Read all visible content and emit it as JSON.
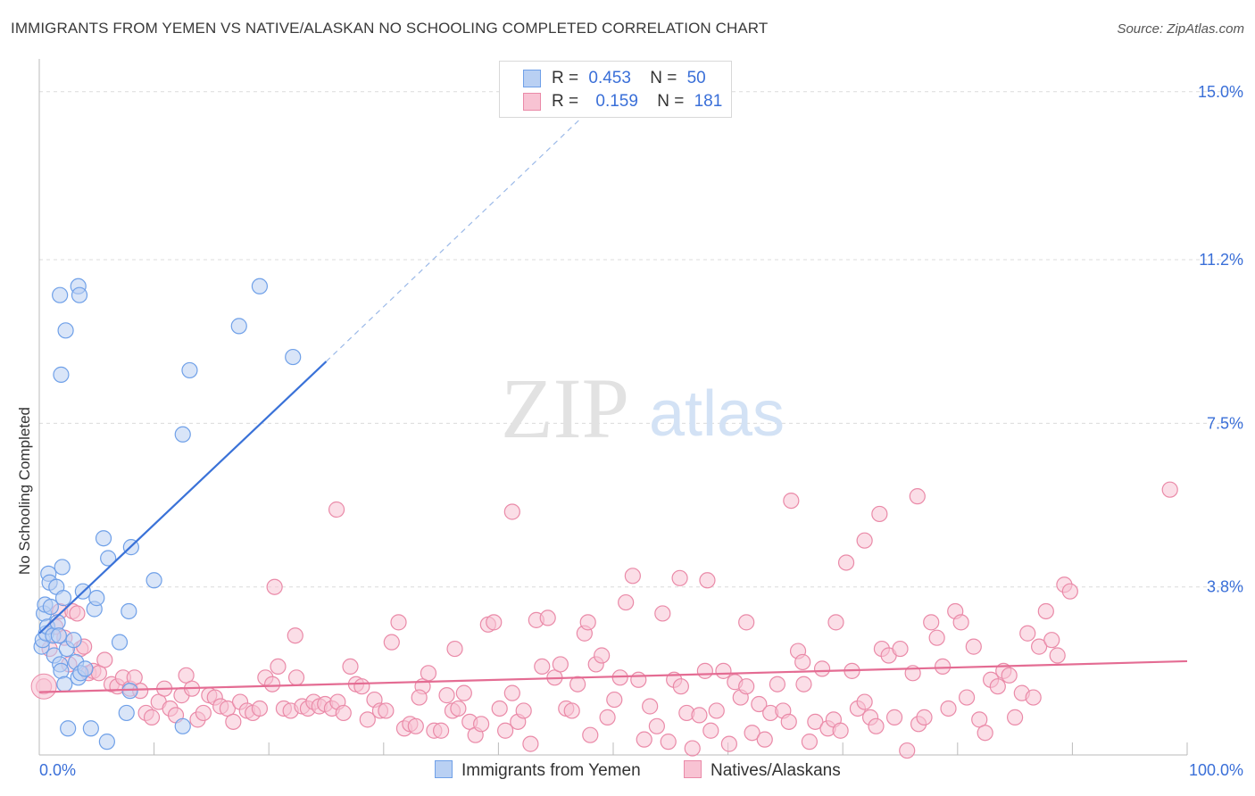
{
  "title": "IMMIGRANTS FROM YEMEN VS NATIVE/ALASKAN NO SCHOOLING COMPLETED CORRELATION CHART",
  "source": "Source: ZipAtlas.com",
  "watermark": {
    "zip": "ZIP",
    "atlas": "atlas"
  },
  "legend_top": [
    {
      "r_label": "R =",
      "r_value": "0.453",
      "n_label": "N =",
      "n_value": "50",
      "color": "#6fa0e8",
      "fill": "#b9d0f3"
    },
    {
      "r_label": "R =",
      "r_value": "0.159",
      "n_label": "N =",
      "n_value": "181",
      "color": "#ea8aa8",
      "fill": "#f8c3d3"
    }
  ],
  "legend_bottom": [
    {
      "label": "Immigrants from Yemen",
      "color": "#6fa0e8",
      "fill": "#b9d0f3"
    },
    {
      "label": "Natives/Alaskans",
      "color": "#ea8aa8",
      "fill": "#f8c3d3"
    }
  ],
  "chart_data": {
    "type": "scatter",
    "title": "IMMIGRANTS FROM YEMEN VS NATIVE/ALASKAN NO SCHOOLING COMPLETED CORRELATION CHART",
    "xlabel": "",
    "ylabel": "No Schooling Completed",
    "xlim": [
      0,
      100
    ],
    "ylim": [
      0,
      15.5
    ],
    "x_tick_labels": [
      "0.0%",
      "100.0%"
    ],
    "y_ticks": [
      3.8,
      7.5,
      11.2,
      15.0
    ],
    "y_tick_labels": [
      "3.8%",
      "7.5%",
      "11.2%",
      "15.0%"
    ],
    "grid": true,
    "legend_position": "top-center",
    "series": [
      {
        "name": "Immigrants from Yemen",
        "color": "#6fa0e8",
        "fill": "#b9d0f3",
        "trend": {
          "x0": 0,
          "y0": 2.75,
          "x1": 25,
          "y1": 8.9,
          "dashed_to_x": 48,
          "dashed_to_y": 14.6,
          "color": "#3a72d8"
        },
        "points": [
          [
            0.2,
            2.45
          ],
          [
            0.3,
            2.6
          ],
          [
            0.4,
            3.2
          ],
          [
            0.5,
            3.4
          ],
          [
            0.6,
            2.75
          ],
          [
            0.7,
            2.9
          ],
          [
            0.8,
            4.1
          ],
          [
            0.9,
            3.9
          ],
          [
            1.0,
            3.35
          ],
          [
            1.2,
            2.7
          ],
          [
            1.3,
            2.25
          ],
          [
            1.5,
            3.8
          ],
          [
            1.6,
            3.0
          ],
          [
            1.7,
            2.7
          ],
          [
            1.8,
            2.05
          ],
          [
            1.9,
            1.9
          ],
          [
            2.0,
            4.25
          ],
          [
            2.1,
            3.55
          ],
          [
            2.2,
            1.6
          ],
          [
            2.4,
            2.4
          ],
          [
            2.5,
            0.6
          ],
          [
            3.0,
            2.6
          ],
          [
            3.2,
            2.1
          ],
          [
            3.4,
            1.75
          ],
          [
            3.6,
            1.85
          ],
          [
            3.8,
            3.7
          ],
          [
            4.0,
            1.95
          ],
          [
            4.5,
            0.6
          ],
          [
            4.8,
            3.3
          ],
          [
            5.0,
            3.55
          ],
          [
            5.6,
            4.9
          ],
          [
            5.9,
            0.3
          ],
          [
            6.0,
            4.45
          ],
          [
            7.0,
            2.55
          ],
          [
            7.6,
            0.95
          ],
          [
            7.8,
            3.25
          ],
          [
            7.9,
            1.45
          ],
          [
            8.0,
            4.7
          ],
          [
            10.0,
            3.95
          ],
          [
            12.5,
            0.65
          ],
          [
            1.8,
            10.4
          ],
          [
            3.4,
            10.6
          ],
          [
            3.5,
            10.4
          ],
          [
            2.3,
            9.6
          ],
          [
            1.9,
            8.6
          ],
          [
            13.1,
            8.7
          ],
          [
            17.4,
            9.7
          ],
          [
            19.2,
            10.6
          ],
          [
            22.1,
            9.0
          ],
          [
            12.5,
            7.25
          ]
        ]
      },
      {
        "name": "Natives/Alaskans",
        "color": "#ea8aa8",
        "fill": "#f8c3d3",
        "trend": {
          "x0": 0,
          "y0": 1.42,
          "x1": 100,
          "y1": 2.12,
          "color": "#e46c93"
        },
        "points": [
          [
            0.4,
            1.55
          ],
          [
            0.9,
            2.4
          ],
          [
            1.4,
            2.9
          ],
          [
            1.8,
            3.25
          ],
          [
            2.2,
            2.65
          ],
          [
            2.6,
            2.05
          ],
          [
            2.9,
            3.25
          ],
          [
            3.3,
            3.2
          ],
          [
            3.6,
            2.4
          ],
          [
            3.9,
            2.45
          ],
          [
            4.3,
            1.85
          ],
          [
            4.7,
            1.9
          ],
          [
            5.2,
            1.85
          ],
          [
            5.7,
            2.15
          ],
          [
            6.3,
            1.6
          ],
          [
            6.8,
            1.55
          ],
          [
            7.3,
            1.75
          ],
          [
            7.9,
            1.5
          ],
          [
            8.3,
            1.75
          ],
          [
            8.8,
            1.45
          ],
          [
            9.3,
            0.95
          ],
          [
            9.8,
            0.85
          ],
          [
            10.4,
            1.2
          ],
          [
            10.9,
            1.5
          ],
          [
            11.4,
            1.05
          ],
          [
            11.9,
            0.9
          ],
          [
            12.4,
            1.35
          ],
          [
            12.8,
            1.8
          ],
          [
            13.3,
            1.5
          ],
          [
            13.8,
            0.8
          ],
          [
            14.3,
            0.95
          ],
          [
            14.8,
            1.35
          ],
          [
            15.3,
            1.3
          ],
          [
            15.8,
            1.1
          ],
          [
            16.4,
            1.05
          ],
          [
            16.9,
            0.75
          ],
          [
            17.5,
            1.2
          ],
          [
            18.1,
            1.0
          ],
          [
            18.6,
            0.95
          ],
          [
            19.2,
            1.05
          ],
          [
            19.7,
            1.75
          ],
          [
            20.3,
            1.6
          ],
          [
            20.8,
            2.0
          ],
          [
            21.3,
            1.05
          ],
          [
            21.9,
            1.0
          ],
          [
            22.4,
            1.75
          ],
          [
            22.9,
            1.1
          ],
          [
            23.4,
            1.05
          ],
          [
            23.9,
            1.2
          ],
          [
            24.4,
            1.1
          ],
          [
            24.9,
            1.15
          ],
          [
            25.5,
            1.05
          ],
          [
            26.0,
            1.2
          ],
          [
            26.5,
            0.95
          ],
          [
            27.1,
            2.0
          ],
          [
            27.6,
            1.6
          ],
          [
            28.1,
            1.55
          ],
          [
            28.6,
            0.8
          ],
          [
            29.2,
            1.25
          ],
          [
            29.7,
            1.0
          ],
          [
            30.2,
            1.0
          ],
          [
            30.7,
            2.55
          ],
          [
            31.3,
            3.0
          ],
          [
            31.8,
            0.6
          ],
          [
            32.3,
            0.7
          ],
          [
            32.8,
            0.65
          ],
          [
            33.4,
            1.55
          ],
          [
            33.9,
            1.85
          ],
          [
            34.4,
            0.55
          ],
          [
            35.0,
            0.55
          ],
          [
            35.5,
            1.35
          ],
          [
            36.0,
            1.0
          ],
          [
            36.5,
            1.05
          ],
          [
            37.0,
            1.4
          ],
          [
            37.5,
            0.75
          ],
          [
            38.0,
            0.45
          ],
          [
            38.5,
            0.7
          ],
          [
            39.1,
            2.95
          ],
          [
            39.6,
            3.0
          ],
          [
            40.1,
            1.05
          ],
          [
            40.6,
            0.55
          ],
          [
            41.2,
            1.4
          ],
          [
            41.7,
            0.75
          ],
          [
            42.2,
            1.0
          ],
          [
            42.8,
            0.25
          ],
          [
            43.3,
            3.05
          ],
          [
            43.8,
            2.0
          ],
          [
            44.3,
            3.1
          ],
          [
            44.9,
            1.75
          ],
          [
            45.4,
            2.05
          ],
          [
            45.9,
            1.05
          ],
          [
            46.4,
            1.0
          ],
          [
            46.9,
            1.6
          ],
          [
            47.5,
            2.75
          ],
          [
            48.0,
            0.45
          ],
          [
            48.5,
            2.05
          ],
          [
            49.0,
            2.25
          ],
          [
            49.5,
            0.85
          ],
          [
            50.1,
            1.25
          ],
          [
            50.6,
            1.75
          ],
          [
            51.1,
            3.45
          ],
          [
            51.7,
            4.05
          ],
          [
            52.2,
            1.7
          ],
          [
            52.7,
            0.35
          ],
          [
            53.2,
            1.1
          ],
          [
            53.8,
            0.65
          ],
          [
            54.3,
            3.2
          ],
          [
            54.8,
            0.3
          ],
          [
            55.3,
            1.7
          ],
          [
            55.9,
            1.55
          ],
          [
            56.4,
            0.95
          ],
          [
            56.9,
            0.15
          ],
          [
            57.5,
            0.9
          ],
          [
            58.0,
            1.9
          ],
          [
            58.5,
            0.55
          ],
          [
            59.0,
            1.0
          ],
          [
            59.6,
            1.9
          ],
          [
            60.1,
            0.25
          ],
          [
            60.6,
            1.65
          ],
          [
            61.1,
            1.3
          ],
          [
            61.6,
            1.55
          ],
          [
            62.1,
            0.5
          ],
          [
            62.7,
            1.15
          ],
          [
            63.2,
            0.35
          ],
          [
            63.7,
            0.95
          ],
          [
            64.3,
            1.6
          ],
          [
            64.8,
            1.0
          ],
          [
            65.3,
            0.75
          ],
          [
            66.1,
            2.35
          ],
          [
            66.6,
            1.6
          ],
          [
            67.1,
            0.3
          ],
          [
            67.6,
            0.75
          ],
          [
            68.2,
            1.95
          ],
          [
            68.7,
            0.6
          ],
          [
            69.2,
            0.8
          ],
          [
            69.8,
            0.55
          ],
          [
            70.3,
            4.35
          ],
          [
            70.8,
            1.9
          ],
          [
            71.3,
            1.05
          ],
          [
            71.9,
            1.2
          ],
          [
            72.4,
            0.85
          ],
          [
            72.9,
            0.65
          ],
          [
            73.4,
            2.4
          ],
          [
            74.0,
            2.25
          ],
          [
            74.5,
            0.85
          ],
          [
            75.0,
            2.4
          ],
          [
            75.6,
            0.1
          ],
          [
            76.1,
            1.85
          ],
          [
            76.6,
            0.7
          ],
          [
            77.1,
            0.85
          ],
          [
            77.7,
            3.0
          ],
          [
            78.2,
            2.65
          ],
          [
            78.7,
            2.0
          ],
          [
            79.2,
            1.05
          ],
          [
            79.8,
            3.25
          ],
          [
            80.3,
            3.0
          ],
          [
            80.8,
            1.3
          ],
          [
            81.4,
            2.45
          ],
          [
            81.9,
            0.8
          ],
          [
            82.4,
            0.5
          ],
          [
            82.9,
            1.7
          ],
          [
            83.5,
            1.55
          ],
          [
            84.0,
            1.9
          ],
          [
            84.5,
            1.8
          ],
          [
            85.0,
            0.85
          ],
          [
            85.6,
            1.4
          ],
          [
            86.1,
            2.75
          ],
          [
            86.6,
            1.3
          ],
          [
            87.1,
            2.45
          ],
          [
            87.7,
            3.25
          ],
          [
            88.2,
            2.6
          ],
          [
            88.7,
            2.25
          ],
          [
            89.3,
            3.85
          ],
          [
            89.8,
            3.7
          ],
          [
            76.5,
            5.85
          ],
          [
            73.2,
            5.45
          ],
          [
            71.9,
            4.85
          ],
          [
            55.8,
            4.0
          ],
          [
            41.2,
            5.5
          ],
          [
            25.9,
            5.55
          ],
          [
            65.5,
            5.75
          ],
          [
            98.5,
            6.0
          ],
          [
            69.4,
            3.0
          ],
          [
            66.5,
            2.1
          ],
          [
            58.2,
            3.95
          ],
          [
            61.6,
            3.0
          ],
          [
            22.3,
            2.7
          ],
          [
            20.5,
            3.8
          ],
          [
            33.1,
            1.3
          ],
          [
            47.8,
            3.0
          ],
          [
            36.2,
            2.4
          ]
        ]
      }
    ]
  }
}
